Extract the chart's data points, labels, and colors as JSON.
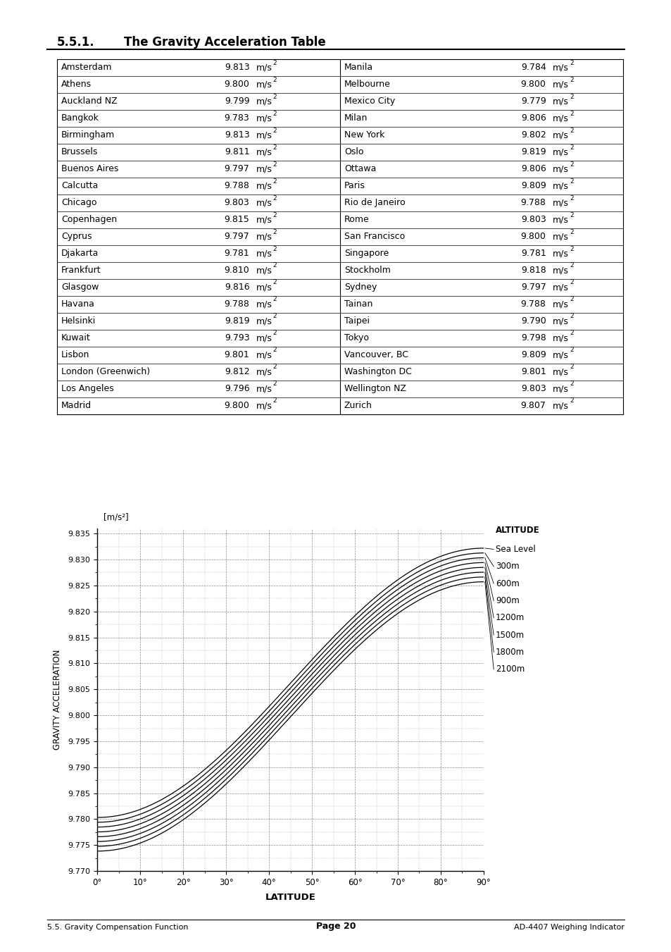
{
  "title_num": "5.5.1.",
  "title_text": "The Gravity Acceleration Table",
  "table_data": [
    [
      "Amsterdam",
      "9.813",
      "Manila",
      "9.784"
    ],
    [
      "Athens",
      "9.800",
      "Melbourne",
      "9.800"
    ],
    [
      "Auckland NZ",
      "9.799",
      "Mexico City",
      "9.779"
    ],
    [
      "Bangkok",
      "9.783",
      "Milan",
      "9.806"
    ],
    [
      "Birmingham",
      "9.813",
      "New York",
      "9.802"
    ],
    [
      "Brussels",
      "9.811",
      "Oslo",
      "9.819"
    ],
    [
      "Buenos Aires",
      "9.797",
      "Ottawa",
      "9.806"
    ],
    [
      "Calcutta",
      "9.788",
      "Paris",
      "9.809"
    ],
    [
      "Chicago",
      "9.803",
      "Rio de Janeiro",
      "9.788"
    ],
    [
      "Copenhagen",
      "9.815",
      "Rome",
      "9.803"
    ],
    [
      "Cyprus",
      "9.797",
      "San Francisco",
      "9.800"
    ],
    [
      "Djakarta",
      "9.781",
      "Singapore",
      "9.781"
    ],
    [
      "Frankfurt",
      "9.810",
      "Stockholm",
      "9.818"
    ],
    [
      "Glasgow",
      "9.816",
      "Sydney",
      "9.797"
    ],
    [
      "Havana",
      "9.788",
      "Tainan",
      "9.788"
    ],
    [
      "Helsinki",
      "9.819",
      "Taipei",
      "9.790"
    ],
    [
      "Kuwait",
      "9.793",
      "Tokyo",
      "9.798"
    ],
    [
      "Lisbon",
      "9.801",
      "Vancouver, BC",
      "9.809"
    ],
    [
      "London (Greenwich)",
      "9.812",
      "Washington DC",
      "9.801"
    ],
    [
      "Los Angeles",
      "9.796",
      "Wellington NZ",
      "9.803"
    ],
    [
      "Madrid",
      "9.800",
      "Zurich",
      "9.807"
    ]
  ],
  "graph": {
    "ylabel": "GRAVITY ACCELERATION",
    "xlabel": "LATITUDE",
    "yunit": "[m/s²]",
    "ylim": [
      9.77,
      9.836
    ],
    "xlim": [
      0,
      90
    ],
    "yticks": [
      9.77,
      9.775,
      9.78,
      9.785,
      9.79,
      9.795,
      9.8,
      9.805,
      9.81,
      9.815,
      9.82,
      9.825,
      9.83,
      9.835
    ],
    "xticks": [
      0,
      10,
      20,
      30,
      40,
      50,
      60,
      70,
      80,
      90
    ],
    "altitudes": [
      0,
      300,
      600,
      900,
      1200,
      1500,
      1800,
      2100
    ],
    "altitude_labels": [
      "Sea Level",
      "300m",
      "600m",
      "900m",
      "1200m",
      "1500m",
      "1800m",
      "2100m"
    ],
    "altitude_header": "ALTITUDE"
  },
  "footer_left": "5.5. Gravity Compensation Function",
  "footer_center": "Page 20",
  "footer_right": "AD-4407 Weighing Indicator"
}
